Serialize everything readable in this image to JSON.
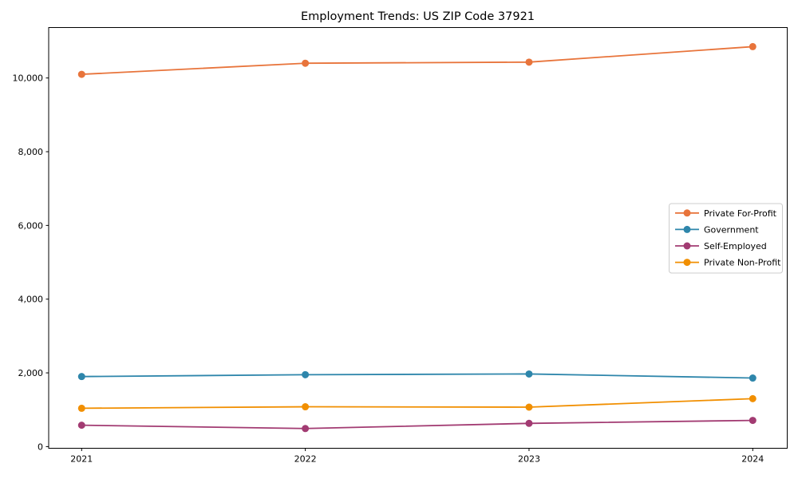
{
  "chart_data": {
    "type": "line",
    "title": "Employment Trends: US ZIP Code 37921",
    "xlabel": "",
    "ylabel": "",
    "x": [
      2021,
      2022,
      2023,
      2024
    ],
    "x_tick_labels": [
      "2021",
      "2022",
      "2023",
      "2024"
    ],
    "y_ticks": [
      0,
      2000,
      4000,
      6000,
      8000,
      10000
    ],
    "y_tick_labels": [
      "0",
      "2,000",
      "4,000",
      "6,000",
      "8,000",
      "10,000"
    ],
    "ylim": [
      -60,
      11400
    ],
    "grid": false,
    "legend_position": "center-right",
    "marker": "circle",
    "series": [
      {
        "name": "Private For-Profit",
        "color": "#E8743B",
        "values": [
          10100,
          10400,
          10430,
          10850
        ]
      },
      {
        "name": "Government",
        "color": "#2E86AB",
        "values": [
          1900,
          1950,
          1970,
          1860
        ]
      },
      {
        "name": "Self-Employed",
        "color": "#A23B72",
        "values": [
          580,
          490,
          630,
          710
        ]
      },
      {
        "name": "Private Non-Profit",
        "color": "#F18F01",
        "values": [
          1040,
          1080,
          1070,
          1300
        ]
      }
    ]
  }
}
